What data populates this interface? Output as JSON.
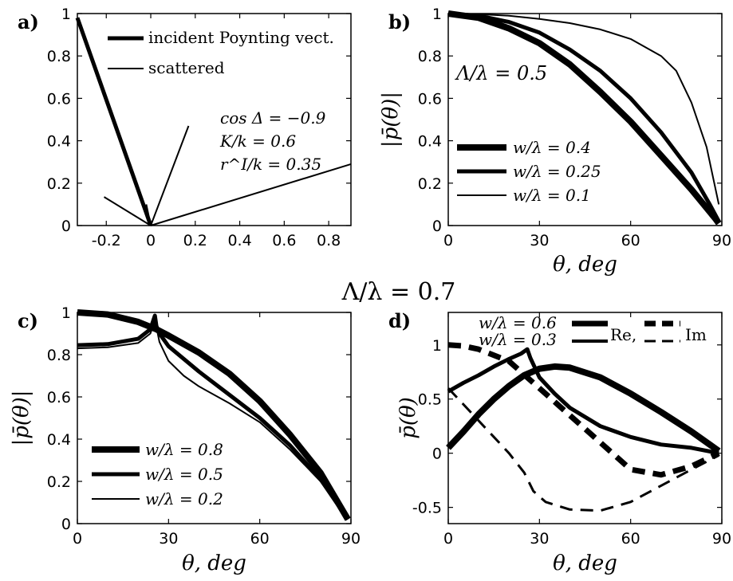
{
  "figure_title": "Λ/λ = 0.7",
  "chart_data": [
    {
      "type": "line",
      "panel": "a)",
      "xlim": [
        -0.33,
        0.9
      ],
      "ylim": [
        0,
        1
      ],
      "xticks": [
        "-0.2",
        "0",
        "0.2",
        "0.4",
        "0.6",
        "0.8"
      ],
      "xtick_values": [
        -0.2,
        0,
        0.2,
        0.4,
        0.6,
        0.8
      ],
      "yticks": [
        "0",
        "0.2",
        "0.4",
        "0.6",
        "0.8",
        "1"
      ],
      "ytick_values": [
        0,
        0.2,
        0.4,
        0.6,
        0.8,
        1
      ],
      "legend": [
        "incident Poynting vect.",
        "scattered"
      ],
      "legend_position": "top-right",
      "annotations": [
        "cos Δ = −0.9",
        "K/k = 0.6",
        "r^I/k = 0.35"
      ],
      "series": [
        {
          "name": "incident Poynting vect.",
          "style": "thick",
          "points": [
            [
              -0.33,
              0.98
            ],
            [
              0,
              0
            ]
          ]
        },
        {
          "name": "scattered",
          "style": "thin",
          "points": [
            [
              0,
              0
            ],
            [
              -0.21,
              0.135
            ]
          ]
        },
        {
          "name": "scattered",
          "style": "thin",
          "points": [
            [
              0,
              0
            ],
            [
              -0.02,
              0.1
            ]
          ]
        },
        {
          "name": "scattered",
          "style": "thin",
          "points": [
            [
              0,
              0
            ],
            [
              0.17,
              0.47
            ]
          ]
        },
        {
          "name": "scattered",
          "style": "thin",
          "points": [
            [
              0,
              0
            ],
            [
              0.9,
              0.29
            ]
          ]
        }
      ]
    },
    {
      "type": "line",
      "panel": "b)",
      "annotation": "Λ/λ = 0.5",
      "xlim": [
        0,
        90
      ],
      "ylim": [
        0,
        1
      ],
      "xticks": [
        "0",
        "30",
        "60",
        "90"
      ],
      "xtick_values": [
        0,
        30,
        60,
        90
      ],
      "yticks": [
        "0",
        "0.2",
        "0.4",
        "0.6",
        "0.8",
        "1"
      ],
      "ytick_values": [
        0,
        0.2,
        0.4,
        0.6,
        0.8,
        1
      ],
      "xlabel": "θ, deg",
      "ylabel": "|p̄(θ)|",
      "legend": [
        "w/λ = 0.4",
        "w/λ = 0.25",
        "w/λ = 0.1"
      ],
      "legend_position": "bottom-left",
      "series": [
        {
          "name": "w/λ = 0.4",
          "style": "thickest",
          "points": [
            [
              0,
              1
            ],
            [
              10,
              0.98
            ],
            [
              20,
              0.93
            ],
            [
              30,
              0.86
            ],
            [
              40,
              0.76
            ],
            [
              50,
              0.63
            ],
            [
              60,
              0.49
            ],
            [
              70,
              0.33
            ],
            [
              80,
              0.17
            ],
            [
              88,
              0.03
            ],
            [
              89,
              0.01
            ]
          ]
        },
        {
          "name": "w/λ = 0.25",
          "style": "thick",
          "points": [
            [
              0,
              1
            ],
            [
              10,
              0.99
            ],
            [
              20,
              0.96
            ],
            [
              30,
              0.91
            ],
            [
              40,
              0.83
            ],
            [
              50,
              0.73
            ],
            [
              60,
              0.6
            ],
            [
              70,
              0.44
            ],
            [
              80,
              0.25
            ],
            [
              86,
              0.1
            ],
            [
              89,
              0.02
            ]
          ]
        },
        {
          "name": "w/λ = 0.1",
          "style": "thin",
          "points": [
            [
              0,
              1
            ],
            [
              10,
              0.997
            ],
            [
              20,
              0.99
            ],
            [
              30,
              0.975
            ],
            [
              40,
              0.955
            ],
            [
              50,
              0.925
            ],
            [
              60,
              0.88
            ],
            [
              70,
              0.8
            ],
            [
              75,
              0.73
            ],
            [
              80,
              0.58
            ],
            [
              85,
              0.37
            ],
            [
              89,
              0.1
            ]
          ]
        }
      ]
    },
    {
      "type": "line",
      "panel": "c)",
      "xlim": [
        0,
        90
      ],
      "ylim": [
        0,
        1
      ],
      "xticks": [
        "0",
        "30",
        "60",
        "90"
      ],
      "xtick_values": [
        0,
        30,
        60,
        90
      ],
      "yticks": [
        "0",
        "0.2",
        "0.4",
        "0.6",
        "0.8",
        "1"
      ],
      "ytick_values": [
        0,
        0.2,
        0.4,
        0.6,
        0.8,
        1
      ],
      "xlabel": "θ, deg",
      "ylabel": "|p̄(θ)|",
      "legend": [
        "w/λ = 0.8",
        "w/λ = 0.5",
        "w/λ = 0.2"
      ],
      "legend_position": "bottom-left",
      "series": [
        {
          "name": "w/λ = 0.8",
          "style": "thickest",
          "points": [
            [
              0,
              1
            ],
            [
              10,
              0.99
            ],
            [
              20,
              0.955
            ],
            [
              26,
              0.92
            ],
            [
              30,
              0.89
            ],
            [
              40,
              0.81
            ],
            [
              50,
              0.71
            ],
            [
              60,
              0.58
            ],
            [
              70,
              0.42
            ],
            [
              80,
              0.24
            ],
            [
              89,
              0.02
            ]
          ]
        },
        {
          "name": "w/λ = 0.5",
          "style": "thick",
          "points": [
            [
              0,
              0.845
            ],
            [
              10,
              0.85
            ],
            [
              20,
              0.875
            ],
            [
              24,
              0.92
            ],
            [
              25.5,
              0.985
            ],
            [
              26,
              0.935
            ],
            [
              27,
              0.9
            ],
            [
              30,
              0.84
            ],
            [
              40,
              0.72
            ],
            [
              50,
              0.61
            ],
            [
              60,
              0.5
            ],
            [
              70,
              0.37
            ],
            [
              80,
              0.21
            ],
            [
              89,
              0.02
            ]
          ]
        },
        {
          "name": "w/λ = 0.2",
          "style": "thin",
          "points": [
            [
              0,
              0.83
            ],
            [
              10,
              0.835
            ],
            [
              20,
              0.855
            ],
            [
              24,
              0.9
            ],
            [
              25.5,
              0.96
            ],
            [
              26,
              0.93
            ],
            [
              27,
              0.86
            ],
            [
              30,
              0.77
            ],
            [
              35,
              0.7
            ],
            [
              40,
              0.65
            ],
            [
              50,
              0.57
            ],
            [
              60,
              0.48
            ],
            [
              70,
              0.35
            ],
            [
              80,
              0.2
            ],
            [
              89,
              0.02
            ]
          ]
        }
      ]
    },
    {
      "type": "line",
      "panel": "d)",
      "xlim": [
        0,
        90
      ],
      "ylim": [
        -0.65,
        1.3
      ],
      "xticks": [
        "0",
        "30",
        "60",
        "90"
      ],
      "xtick_values": [
        0,
        30,
        60,
        90
      ],
      "yticks": [
        "-0.5",
        "0",
        "0.5",
        "1"
      ],
      "ytick_values": [
        -0.5,
        0,
        0.5,
        1
      ],
      "xlabel": "θ, deg",
      "ylabel": "p̄(θ)",
      "legend": [
        "w/λ = 0.6",
        "w/λ = 0.3",
        "Re,",
        "Im"
      ],
      "legend_position": "top",
      "series": [
        {
          "name": "w/λ = 0.6 Re",
          "style": "thickest",
          "points": [
            [
              0,
              0.05
            ],
            [
              5,
              0.2
            ],
            [
              10,
              0.36
            ],
            [
              15,
              0.5
            ],
            [
              20,
              0.62
            ],
            [
              25,
              0.72
            ],
            [
              30,
              0.78
            ],
            [
              35,
              0.8
            ],
            [
              40,
              0.79
            ],
            [
              50,
              0.7
            ],
            [
              60,
              0.55
            ],
            [
              70,
              0.38
            ],
            [
              80,
              0.2
            ],
            [
              89,
              0.02
            ]
          ]
        },
        {
          "name": "w/λ = 0.6 Im",
          "style": "thickest-dashed",
          "points": [
            [
              0,
              1
            ],
            [
              5,
              0.99
            ],
            [
              10,
              0.96
            ],
            [
              20,
              0.85
            ],
            [
              30,
              0.6
            ],
            [
              40,
              0.35
            ],
            [
              50,
              0.1
            ],
            [
              60,
              -0.15
            ],
            [
              70,
              -0.2
            ],
            [
              80,
              -0.12
            ],
            [
              89,
              0
            ]
          ]
        },
        {
          "name": "w/λ = 0.3 Re",
          "style": "thick",
          "points": [
            [
              0,
              0.57
            ],
            [
              5,
              0.65
            ],
            [
              10,
              0.72
            ],
            [
              15,
              0.8
            ],
            [
              20,
              0.87
            ],
            [
              24,
              0.92
            ],
            [
              26,
              0.96
            ],
            [
              27,
              0.88
            ],
            [
              30,
              0.7
            ],
            [
              35,
              0.55
            ],
            [
              40,
              0.42
            ],
            [
              50,
              0.25
            ],
            [
              60,
              0.15
            ],
            [
              70,
              0.08
            ],
            [
              80,
              0.05
            ],
            [
              89,
              0
            ]
          ]
        },
        {
          "name": "w/λ = 0.3 Im",
          "style": "thin-dashed",
          "points": [
            [
              0,
              0.6
            ],
            [
              5,
              0.45
            ],
            [
              10,
              0.3
            ],
            [
              15,
              0.15
            ],
            [
              20,
              0.0
            ],
            [
              25,
              -0.18
            ],
            [
              28,
              -0.35
            ],
            [
              32,
              -0.45
            ],
            [
              40,
              -0.52
            ],
            [
              50,
              -0.53
            ],
            [
              60,
              -0.45
            ],
            [
              70,
              -0.3
            ],
            [
              80,
              -0.15
            ],
            [
              89,
              -0.02
            ]
          ]
        }
      ]
    }
  ]
}
